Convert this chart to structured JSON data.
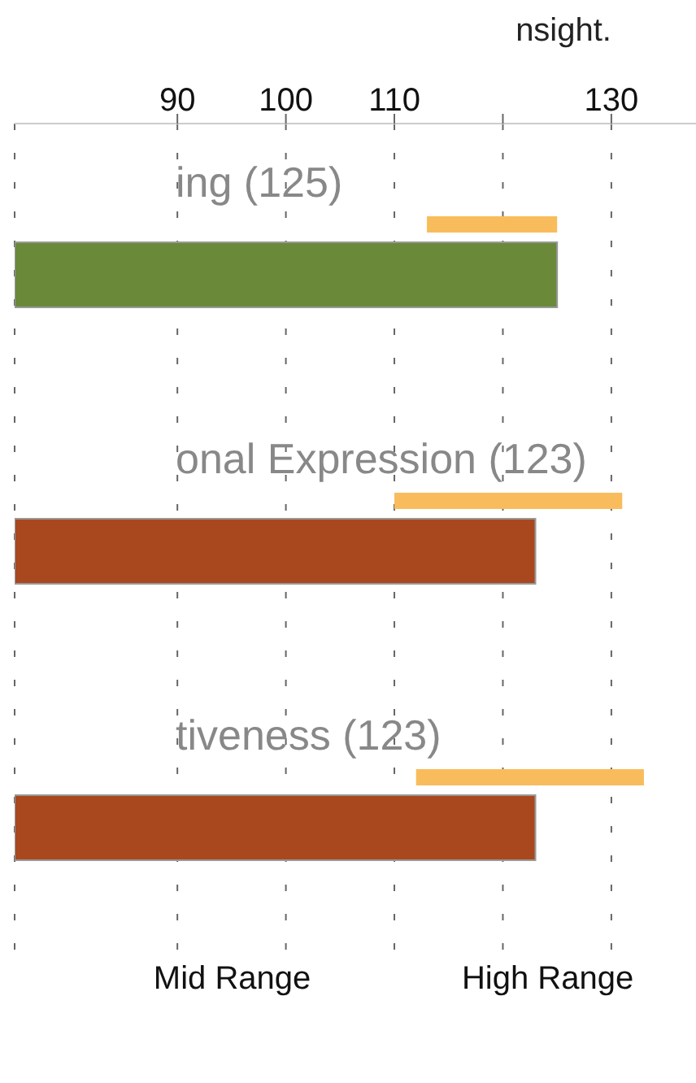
{
  "chart_data": {
    "type": "bar",
    "orientation": "horizontal",
    "annotations": [
      "nsight.",
      "Mid Range",
      "High Range"
    ],
    "categories": [
      "ing (125)",
      "onal Expression (123)",
      "tiveness (123)"
    ],
    "xlim": [
      75,
      139
    ],
    "xticks": [
      90,
      100,
      110,
      {
        "value": 120,
        "label": null
      },
      130
    ],
    "grid": "x",
    "series": [
      {
        "color": "#f9bc5c",
        "base": [
          113,
          110,
          112
        ],
        "values": [
          12,
          21,
          21
        ]
      },
      {
        "colors": [
          "#6a8a3a",
          "#a9481f",
          "#a9481f"
        ],
        "values": [
          125,
          123,
          123
        ]
      }
    ]
  }
}
